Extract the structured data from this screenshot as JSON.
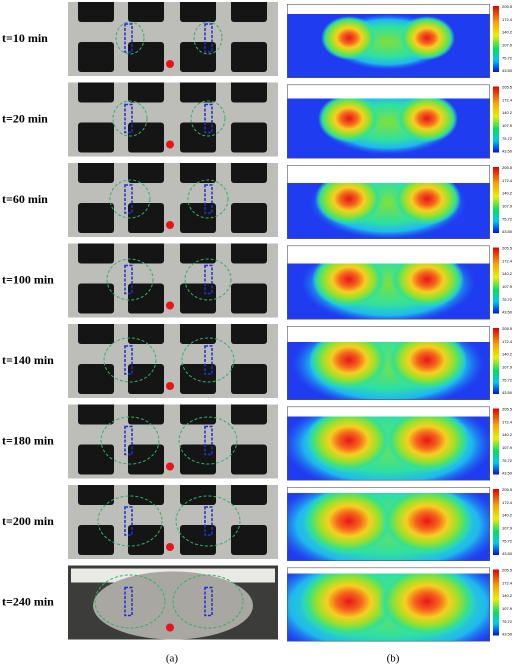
{
  "rows": [
    {
      "label": "t=10 min"
    },
    {
      "label": "t=20 min"
    },
    {
      "label": "t=60 min"
    },
    {
      "label": "t=100 min"
    },
    {
      "label": "t=140 min"
    },
    {
      "label": "t=180 min"
    },
    {
      "label": "t=200 min"
    },
    {
      "label": "t=240 min"
    }
  ],
  "colorbar": {
    "ticks": [
      "205.5",
      "172.4",
      "140.2",
      "107.9",
      "75.72",
      "43.50"
    ]
  },
  "captions": {
    "a": "(a)",
    "b": "(b)"
  }
}
